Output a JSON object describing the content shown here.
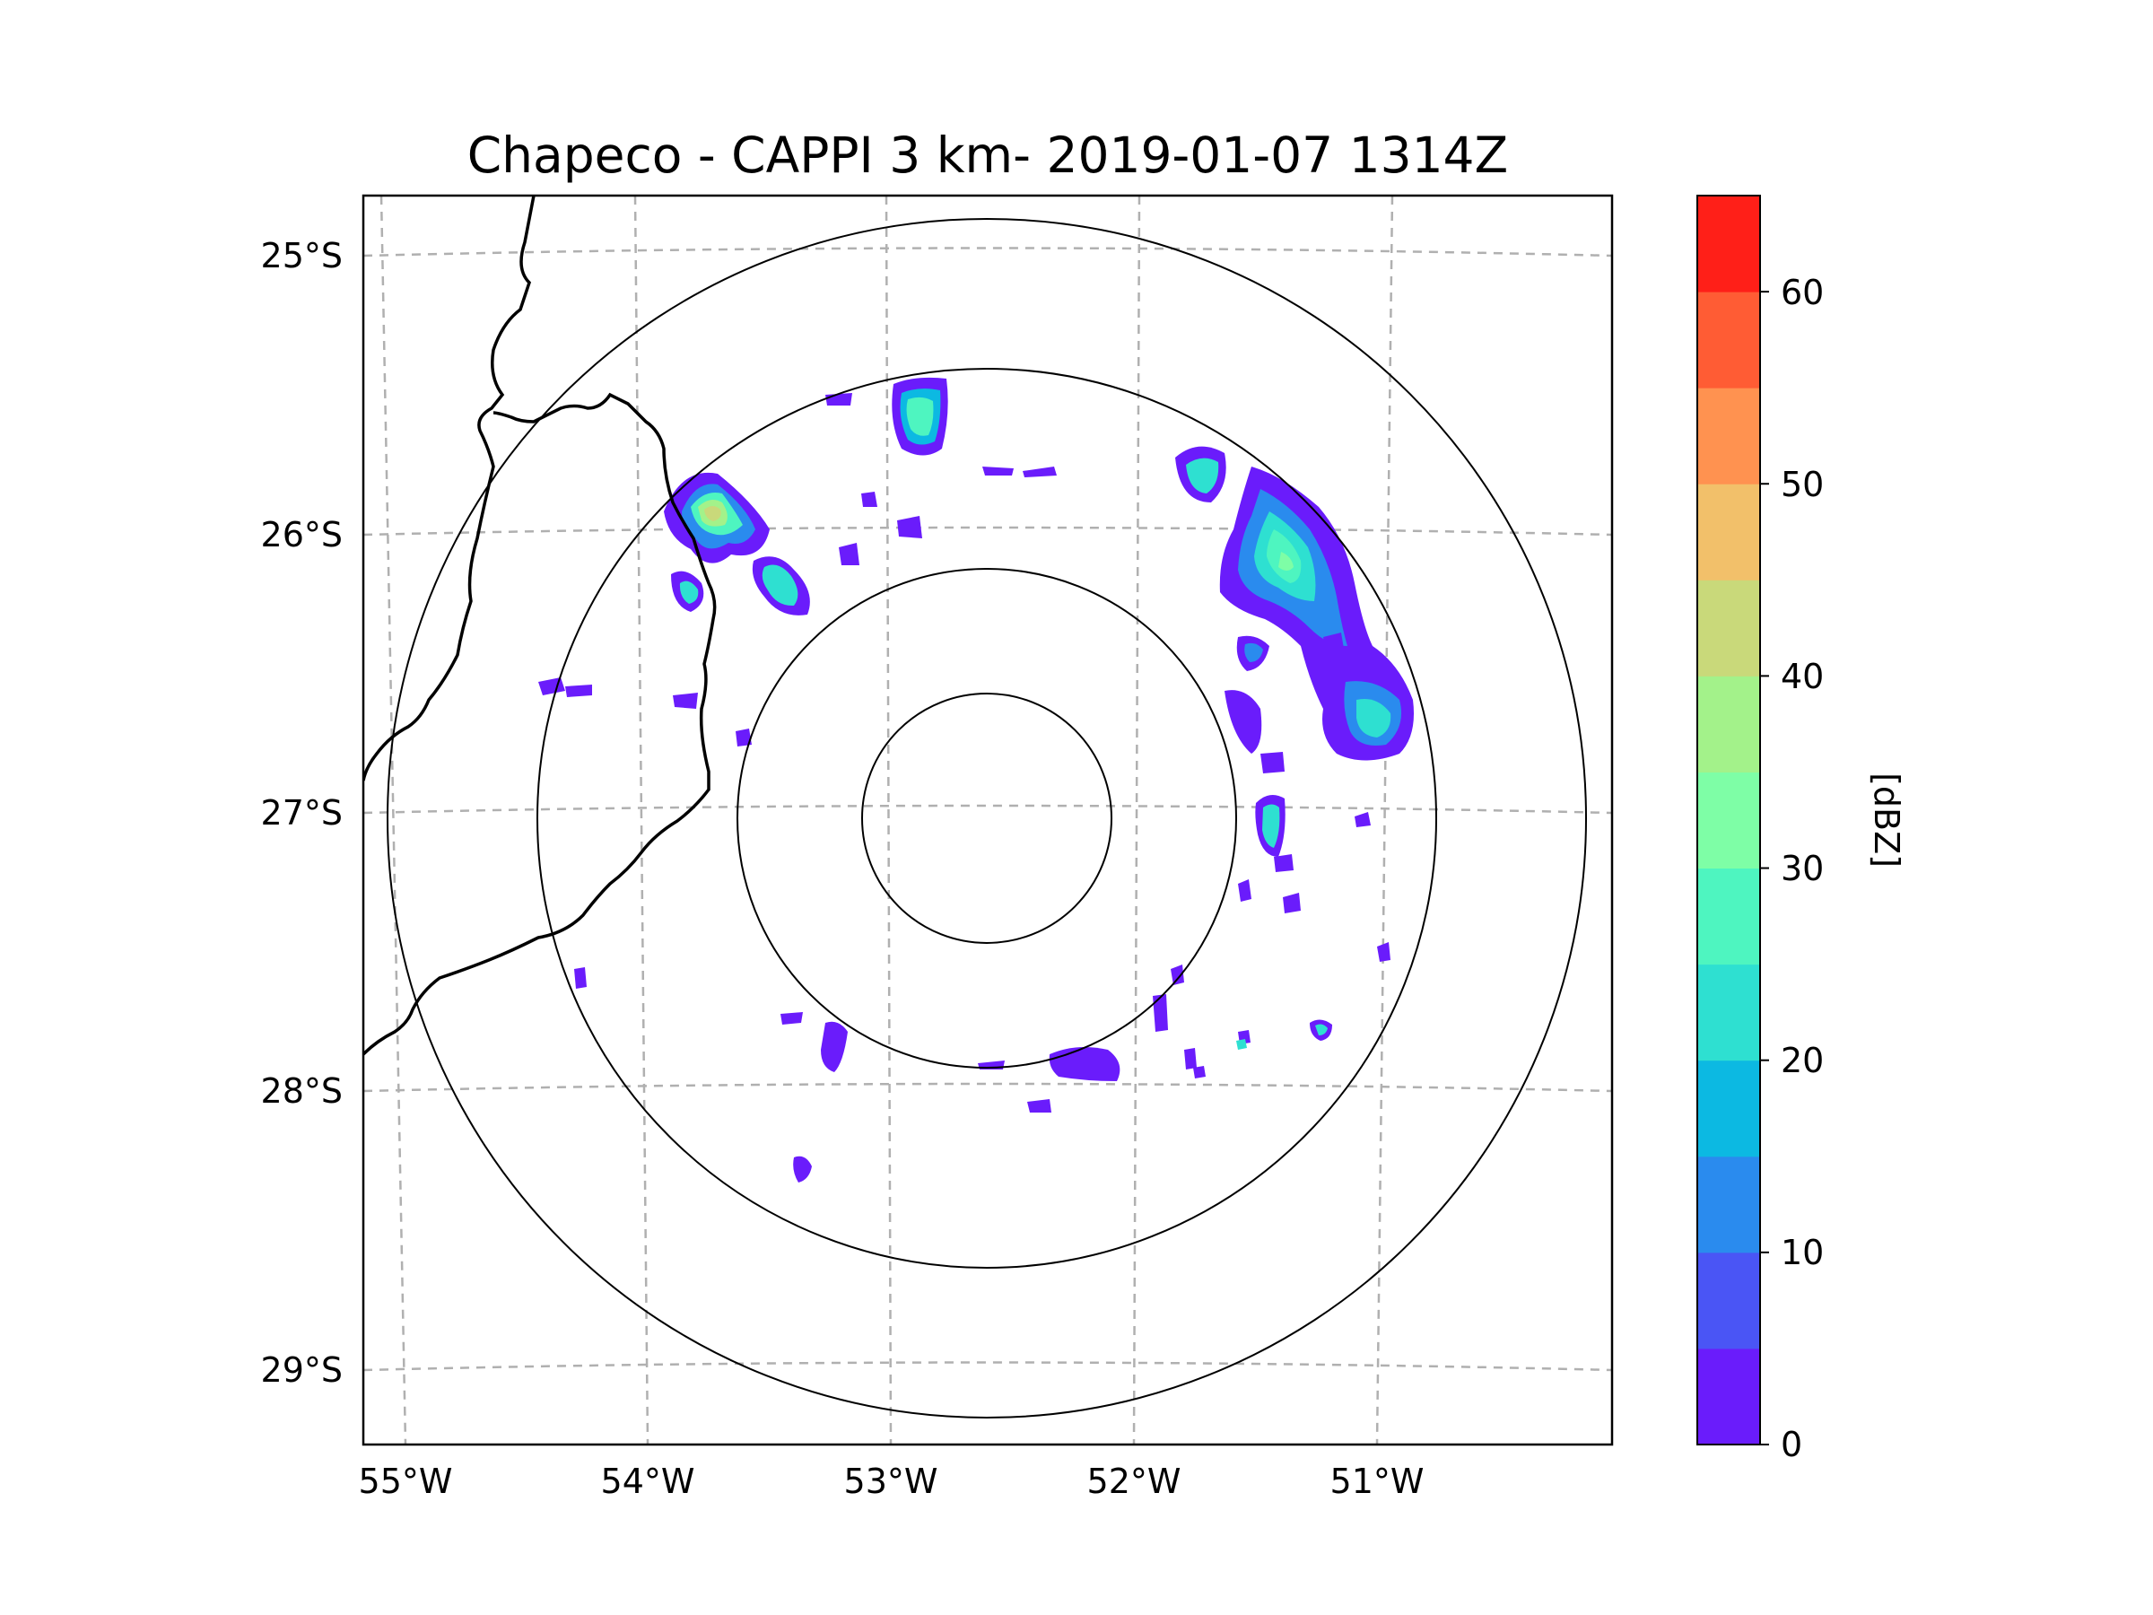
{
  "title": "Chapeco - CAPPI 3 km- 2019-01-07 1314Z",
  "map": {
    "lat_labels": [
      "25°S",
      "26°S",
      "27°S",
      "28°S",
      "29°S"
    ],
    "lon_labels": [
      "55°W",
      "54°W",
      "53°W",
      "52°W",
      "51°W"
    ],
    "grid_style": "dashed",
    "range_rings": 4,
    "radar_center": "27.0°S 52.6°W"
  },
  "colorbar": {
    "label": "[dBZ]",
    "tick_labels": [
      "0",
      "10",
      "20",
      "30",
      "40",
      "50",
      "60"
    ],
    "levels": [
      0,
      5,
      10,
      15,
      20,
      25,
      30,
      35,
      40,
      45,
      50,
      55,
      60,
      65
    ],
    "colors": [
      "#6a1cfb",
      "#4a55f5",
      "#2a8bee",
      "#0cb9e2",
      "#2ee0d1",
      "#4ef5c0",
      "#7efea6",
      "#a3f28a",
      "#c9d97a",
      "#f2c06a",
      "#ff9250",
      "#ff5c34",
      "#ff1f18"
    ]
  },
  "echoes": [
    {
      "name": "echo-northwest-cell",
      "dbz": 45
    },
    {
      "name": "echo-north-cell",
      "dbz": 25
    },
    {
      "name": "echo-northeast-band",
      "dbz": 30
    },
    {
      "name": "echo-east-cell",
      "dbz": 25
    },
    {
      "name": "echo-south-cells",
      "dbz": 5
    }
  ]
}
